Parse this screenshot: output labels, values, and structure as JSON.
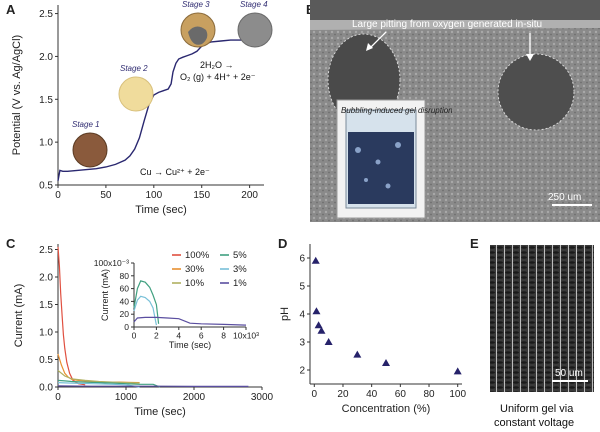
{
  "panels": {
    "a": "A",
    "b": "B",
    "c": "C",
    "d": "D",
    "e": "E"
  },
  "panelA": {
    "stages": [
      "Stage 1",
      "Stage 2",
      "Stage 3",
      "Stage 4"
    ],
    "ann_cu": "Cu → Cu²⁺ + 2e⁻",
    "ann_water1": "2H₂O →",
    "ann_water2": "O₂ (g) + 4H⁺ + 2e⁻",
    "colors": {
      "line": "#2a2870",
      "stage1": "#8a5a3c",
      "stage2": "#f0dc9c",
      "stage3": "#c8a060",
      "stage4": "#8c8c8c"
    }
  },
  "panelB": {
    "annotation": "Large pitting from oxygen generated in-situ",
    "inset": "Bubbling-induced gel disruption",
    "scalebar": "250 um"
  },
  "panelE": {
    "scalebar": "50 um",
    "caption1": "Uniform gel via",
    "caption2": "constant voltage"
  },
  "chart_data": [
    {
      "id": "A",
      "type": "line",
      "xlabel": "Time (sec)",
      "ylabel": "Potential (V vs. Ag/AgCl)",
      "xlim": [
        0,
        215
      ],
      "ylim": [
        0.5,
        2.6
      ],
      "xticks": [
        0,
        50,
        100,
        150,
        200
      ],
      "yticks": [
        0.5,
        1.0,
        1.5,
        2.0,
        2.5
      ],
      "series": [
        {
          "x": [
            0,
            2,
            5,
            10,
            20,
            30,
            40,
            50,
            60,
            70,
            75,
            80,
            85,
            90,
            95,
            100,
            105,
            110,
            115,
            118,
            120,
            123,
            126,
            130,
            135,
            140,
            145,
            150,
            155,
            160,
            170,
            180,
            190,
            200,
            215
          ],
          "y": [
            0.55,
            0.67,
            0.66,
            0.66,
            0.67,
            0.68,
            0.69,
            0.71,
            0.74,
            0.79,
            0.84,
            0.92,
            1.05,
            1.25,
            1.44,
            1.55,
            1.58,
            1.6,
            1.62,
            1.68,
            1.82,
            1.92,
            1.97,
            1.99,
            2.01,
            2.03,
            2.06,
            2.12,
            2.15,
            2.17,
            2.18,
            2.19,
            2.19,
            2.19,
            2.19
          ]
        }
      ]
    },
    {
      "id": "C",
      "type": "line",
      "xlabel": "Time (sec)",
      "ylabel": "Current (mA)",
      "xlim": [
        0,
        3000
      ],
      "ylim": [
        0,
        2.6
      ],
      "xticks": [
        0,
        1000,
        2000,
        3000
      ],
      "yticks": [
        0.0,
        0.5,
        1.0,
        1.5,
        2.0,
        2.5
      ],
      "series": [
        {
          "name": "100%",
          "color": "#e05040",
          "x": [
            0,
            20,
            40,
            60,
            80,
            100,
            130,
            170,
            220,
            300,
            400
          ],
          "y": [
            2.55,
            2.2,
            1.7,
            1.3,
            0.95,
            0.7,
            0.45,
            0.25,
            0.12,
            0.06,
            0.04
          ]
        },
        {
          "name": "30%",
          "color": "#e89030",
          "x": [
            0,
            50,
            100,
            150,
            200,
            300,
            400,
            500,
            700,
            900,
            1200
          ],
          "y": [
            0.6,
            0.4,
            0.25,
            0.18,
            0.14,
            0.12,
            0.11,
            0.1,
            0.09,
            0.09,
            0.08
          ]
        },
        {
          "name": "10%",
          "color": "#b0b060",
          "x": [
            0,
            100,
            200,
            400,
            600,
            800,
            1000,
            1200
          ],
          "y": [
            0.3,
            0.2,
            0.15,
            0.12,
            0.1,
            0.09,
            0.08,
            0.07
          ]
        },
        {
          "name": "5%",
          "color": "#40a080",
          "x": [
            0,
            100,
            200,
            400,
            600,
            800,
            1000,
            1200,
            1400,
            1500
          ],
          "y": [
            0.12,
            0.11,
            0.1,
            0.09,
            0.08,
            0.07,
            0.06,
            0.05,
            0.05,
            0.0
          ]
        },
        {
          "name": "3%",
          "color": "#78c0d8",
          "x": [
            0,
            200,
            500,
            800,
            1000,
            1200
          ],
          "y": [
            0.08,
            0.07,
            0.06,
            0.05,
            0.04,
            0.0
          ]
        },
        {
          "name": "1%",
          "color": "#5a4ea0",
          "x": [
            0,
            500,
            1000,
            1500,
            2000,
            2500,
            2800
          ],
          "y": [
            0.02,
            0.015,
            0.015,
            0.015,
            0.01,
            0.01,
            0.01
          ]
        }
      ],
      "inset": {
        "type": "line",
        "xlabel": "Time (sec)",
        "ylabel": "Current (mA)",
        "ymult": "x10⁻³",
        "xmult": "x10³",
        "xlim": [
          0,
          10
        ],
        "ylim": [
          0,
          100
        ],
        "xticks": [
          0,
          2,
          4,
          6,
          8,
          10
        ],
        "xtick_labels": [
          "0",
          "2",
          "4",
          "6",
          "8",
          "10x10³"
        ],
        "yticks": [
          0,
          20,
          40,
          60,
          80,
          100
        ],
        "ytick_labels": [
          "0",
          "20",
          "40",
          "60",
          "80",
          "100x10⁻³"
        ],
        "series": [
          {
            "name": "5%",
            "color": "#40a080",
            "x": [
              0,
              0.3,
              0.6,
              1.0,
              1.4,
              1.7,
              2.0,
              2.2
            ],
            "y": [
              30,
              60,
              72,
              70,
              62,
              50,
              35,
              5
            ]
          },
          {
            "name": "3%",
            "color": "#78c0d8",
            "x": [
              0,
              0.3,
              0.6,
              1.0,
              1.4,
              1.7,
              2.0
            ],
            "y": [
              25,
              42,
              48,
              46,
              40,
              30,
              3
            ]
          },
          {
            "name": "1%",
            "color": "#5a4ea0",
            "x": [
              0,
              0.3,
              1.0,
              2.0,
              3.0,
              4.0,
              5.0,
              6.0,
              8.0,
              10.0
            ],
            "y": [
              8,
              14,
              15,
              15,
              14,
              13,
              6,
              5,
              4,
              3
            ]
          }
        ]
      }
    },
    {
      "id": "D",
      "type": "scatter",
      "xlabel": "Concentration (%)",
      "ylabel": "pH",
      "xlim": [
        -3,
        103
      ],
      "ylim": [
        1.5,
        6.5
      ],
      "xticks": [
        0,
        20,
        40,
        60,
        80,
        100
      ],
      "yticks": [
        2,
        3,
        4,
        5,
        6
      ],
      "marker_color": "#26226a",
      "x": [
        1,
        1.5,
        3,
        5,
        10,
        30,
        50,
        100
      ],
      "y": [
        5.9,
        4.1,
        3.6,
        3.4,
        3.0,
        2.55,
        2.25,
        1.95
      ]
    }
  ]
}
